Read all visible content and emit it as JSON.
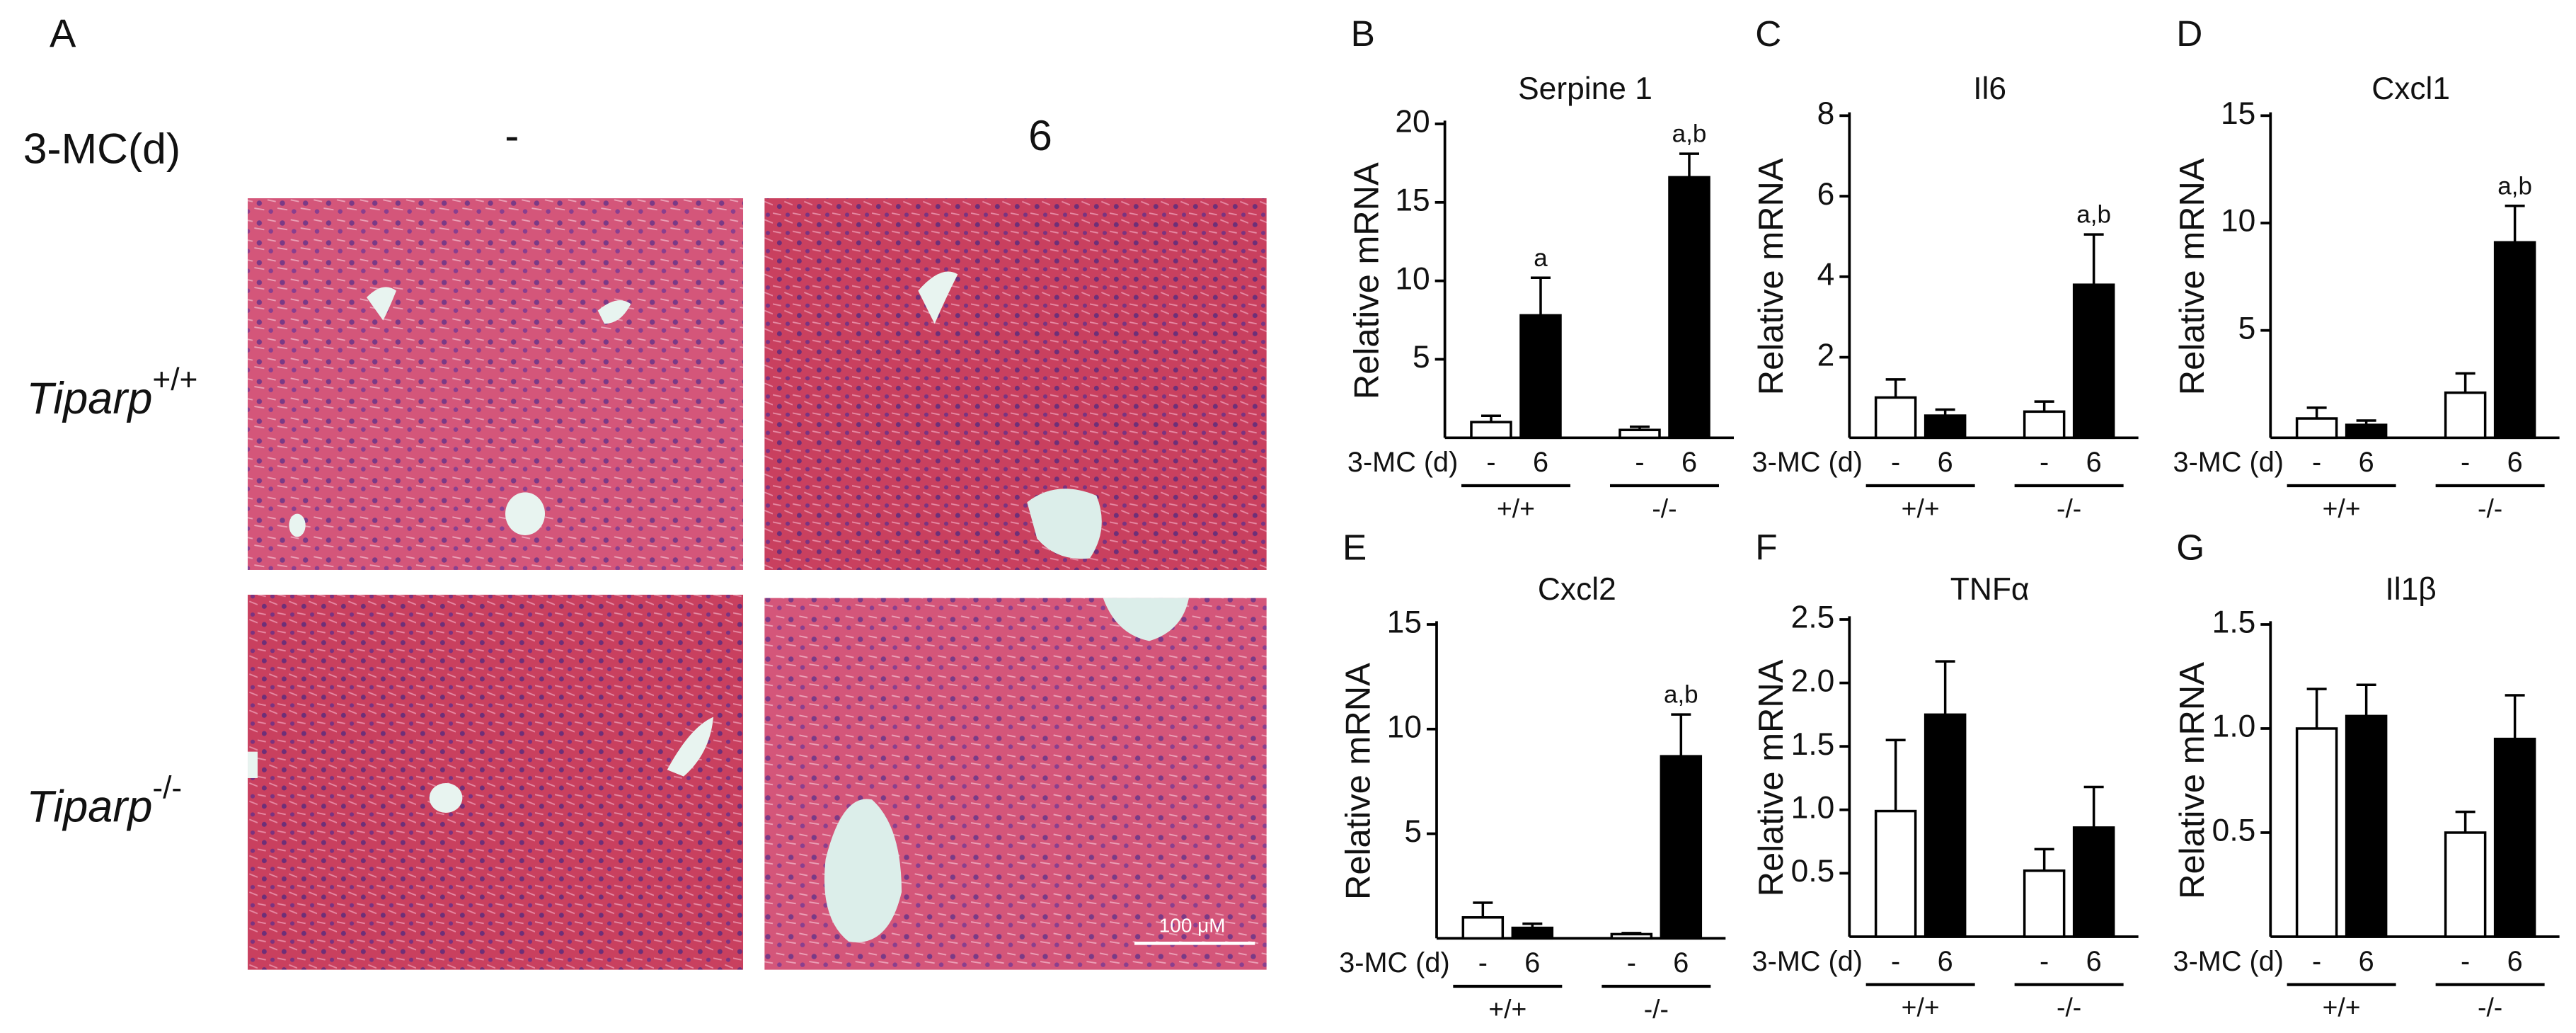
{
  "panel_a": {
    "label": "A",
    "treatment_label": "3-MC(d)",
    "columns": [
      "-",
      "6"
    ],
    "rows": [
      {
        "gene": "Tiparp",
        "genotype": "+/+"
      },
      {
        "gene": "Tiparp",
        "genotype": "-/-"
      }
    ],
    "scale_bar": "100 μM"
  },
  "chart_data": [
    {
      "type": "bar",
      "panel": "B",
      "title": "Serpine 1",
      "y_label": "Relative mRNA",
      "x_label": "3-MC (d)",
      "categories": [
        "-",
        "6",
        "-",
        "6"
      ],
      "groups": [
        "+/+",
        "-/-"
      ],
      "values": [
        1.0,
        7.8,
        0.5,
        16.6
      ],
      "errors": [
        0.4,
        2.4,
        0.2,
        1.5
      ],
      "annotations": [
        null,
        "a",
        null,
        "a,b"
      ],
      "colors": [
        "#ffffff",
        "#000000",
        "#ffffff",
        "#000000"
      ],
      "ylim": [
        0,
        20
      ],
      "yticks": [
        5,
        10,
        15,
        20
      ]
    },
    {
      "type": "bar",
      "panel": "C",
      "title": "Il6",
      "y_label": "Relative mRNA",
      "x_label": "3-MC (d)",
      "categories": [
        "-",
        "6",
        "-",
        "6"
      ],
      "groups": [
        "+/+",
        "-/-"
      ],
      "values": [
        1.0,
        0.55,
        0.65,
        3.8
      ],
      "errors": [
        0.45,
        0.15,
        0.25,
        1.25
      ],
      "annotations": [
        null,
        null,
        null,
        "a,b"
      ],
      "colors": [
        "#ffffff",
        "#000000",
        "#ffffff",
        "#000000"
      ],
      "ylim": [
        0,
        8
      ],
      "yticks": [
        2,
        4,
        6,
        8
      ]
    },
    {
      "type": "bar",
      "panel": "D",
      "title": "Cxcl1",
      "y_label": "Relative mRNA",
      "x_label": "3-MC (d)",
      "categories": [
        "-",
        "6",
        "-",
        "6"
      ],
      "groups": [
        "+/+",
        "-/-"
      ],
      "values": [
        0.9,
        0.6,
        2.1,
        9.1
      ],
      "errors": [
        0.5,
        0.2,
        0.9,
        1.7
      ],
      "annotations": [
        null,
        null,
        null,
        "a,b"
      ],
      "colors": [
        "#ffffff",
        "#000000",
        "#ffffff",
        "#000000"
      ],
      "ylim": [
        0,
        15
      ],
      "yticks": [
        5,
        10,
        15
      ]
    },
    {
      "type": "bar",
      "panel": "E",
      "title": "Cxcl2",
      "y_label": "Relative mRNA",
      "x_label": "3-MC (d)",
      "categories": [
        "-",
        "6",
        "-",
        "6"
      ],
      "groups": [
        "+/+",
        "-/-"
      ],
      "values": [
        1.0,
        0.5,
        0.2,
        8.7
      ],
      "errors": [
        0.7,
        0.2,
        0.05,
        2.0
      ],
      "annotations": [
        null,
        null,
        null,
        "a,b"
      ],
      "colors": [
        "#ffffff",
        "#000000",
        "#ffffff",
        "#000000"
      ],
      "ylim": [
        0,
        15
      ],
      "yticks": [
        5,
        10,
        15
      ]
    },
    {
      "type": "bar",
      "panel": "F",
      "title": "TNFα",
      "y_label": "Relative mRNA",
      "x_label": "3-MC (d)",
      "categories": [
        "-",
        "6",
        "-",
        "6"
      ],
      "groups": [
        "+/+",
        "-/-"
      ],
      "values": [
        0.99,
        1.75,
        0.52,
        0.86
      ],
      "errors": [
        0.56,
        0.42,
        0.17,
        0.32
      ],
      "annotations": [
        null,
        null,
        null,
        null
      ],
      "colors": [
        "#ffffff",
        "#000000",
        "#ffffff",
        "#000000"
      ],
      "ylim": [
        0,
        2.5
      ],
      "yticks": [
        0.5,
        {
          "value": 1,
          "label": "1.0"
        },
        1.5,
        {
          "value": 2,
          "label": "2.0"
        },
        2.5
      ]
    },
    {
      "type": "bar",
      "panel": "G",
      "title": "Il1β",
      "y_label": "Relative mRNA",
      "x_label": "3-MC (d)",
      "categories": [
        "-",
        "6",
        "-",
        "6"
      ],
      "groups": [
        "+/+",
        "-/-"
      ],
      "values": [
        1.0,
        1.06,
        0.5,
        0.95
      ],
      "errors": [
        0.19,
        0.15,
        0.1,
        0.21
      ],
      "annotations": [
        null,
        null,
        null,
        null
      ],
      "colors": [
        "#ffffff",
        "#000000",
        "#ffffff",
        "#000000"
      ],
      "ylim": [
        0,
        1.5
      ],
      "yticks": [
        0.5,
        {
          "value": 1,
          "label": "1.0"
        },
        1.5
      ]
    }
  ]
}
